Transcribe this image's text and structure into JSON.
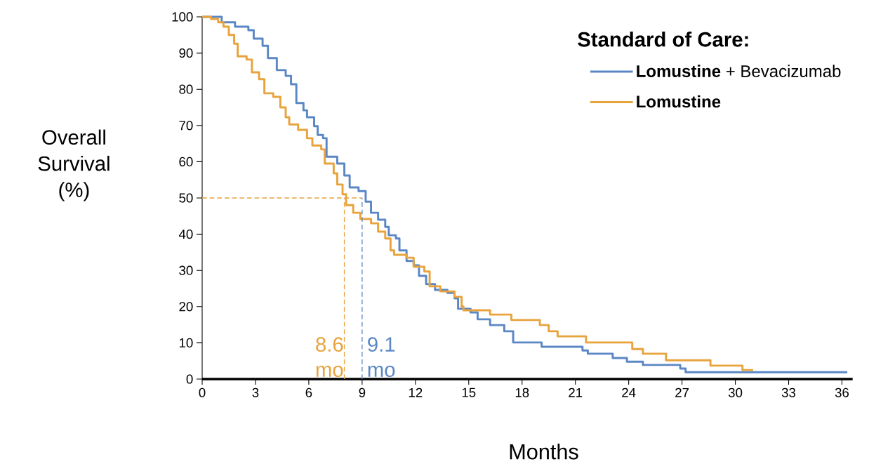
{
  "chart_data": {
    "type": "step",
    "xlabel": "Months",
    "ylabel": "Overall Survival (%)",
    "legend_title": "Standard of Care:",
    "legend": "top right",
    "xlim": [
      0,
      36.6
    ],
    "xticks": [
      0,
      3,
      6,
      9,
      12,
      15,
      18,
      21,
      24,
      27,
      30,
      33,
      36
    ],
    "ylim": [
      0,
      100
    ],
    "yticks": [
      0,
      10,
      20,
      30,
      40,
      50,
      60,
      70,
      80,
      90,
      100
    ],
    "grid": false,
    "line_style": "solid",
    "marker": "none",
    "series": [
      {
        "name": "**Lomustine** + Bevacizumab",
        "color": "#5b87c5",
        "x": [
          0,
          1.1,
          1.85,
          2.6,
          2.9,
          3.4,
          3.7,
          4.2,
          4.7,
          5.0,
          5.3,
          5.7,
          5.9,
          6.3,
          6.5,
          6.8,
          7.0,
          7.6,
          8.0,
          8.3,
          8.8,
          9.2,
          9.5,
          9.9,
          10.3,
          10.5,
          10.9,
          11.1,
          11.5,
          11.9,
          12.2,
          12.6,
          13.1,
          13.8,
          14.2,
          14.4,
          15.1,
          15.5,
          16.2,
          17.0,
          17.5,
          19.1,
          21.4,
          21.7,
          23.1,
          23.9,
          24.8,
          26.9,
          27.2,
          36.3
        ],
        "values": [
          100,
          98.5,
          97.3,
          96.3,
          94,
          92,
          88.6,
          85.3,
          83.7,
          81.4,
          76.2,
          74.2,
          72.3,
          69.8,
          67.4,
          66.5,
          61.4,
          59.5,
          56.2,
          52.9,
          51.9,
          49,
          45.9,
          44,
          42,
          39.7,
          38.8,
          35.5,
          32.6,
          31.4,
          28.5,
          26.2,
          24.6,
          23.8,
          22.3,
          19.4,
          18.4,
          16.5,
          14.9,
          13.2,
          10.1,
          8.9,
          7.9,
          7.0,
          5.8,
          4.8,
          3.9,
          2.9,
          1.9,
          1.9
        ]
      },
      {
        "name": "**Lomustine**",
        "color": "#e8a33d",
        "x": [
          0,
          0.5,
          0.9,
          1.2,
          1.5,
          1.8,
          2.0,
          2.5,
          2.8,
          3.2,
          3.5,
          4.0,
          4.4,
          4.7,
          4.9,
          5.4,
          5.9,
          6.2,
          6.7,
          6.9,
          7.4,
          7.6,
          7.9,
          8.1,
          8.5,
          8.9,
          9.5,
          9.9,
          10.3,
          10.6,
          10.8,
          11.5,
          11.9,
          12.5,
          12.8,
          13.4,
          14.2,
          14.6,
          14.7,
          16.2,
          17.4,
          19.0,
          19.5,
          20.0,
          21.6,
          24.2,
          24.8,
          26.1,
          28.6,
          30.4,
          31.0
        ],
        "values": [
          100,
          99.4,
          98.5,
          97.3,
          95,
          92.6,
          89.1,
          88.2,
          84.7,
          82.8,
          78.9,
          77.9,
          75,
          72.3,
          70.3,
          68.8,
          66.5,
          64.5,
          63.4,
          59.5,
          56.8,
          53.7,
          51,
          48,
          45.9,
          44.2,
          43,
          40.7,
          38.8,
          35.5,
          34.3,
          33.5,
          31,
          29.7,
          25.6,
          24.2,
          22.7,
          20,
          19,
          17.8,
          16.3,
          14.9,
          13.2,
          11.8,
          10.1,
          8.3,
          7.0,
          5.2,
          3.7,
          2.5,
          2.5
        ]
      }
    ],
    "ref_lines": [
      {
        "axis": "y",
        "value": 50,
        "color": "#e8a33d",
        "line_style": "dashed"
      },
      {
        "axis": "x",
        "value": 8.0,
        "label": "8.6 mo",
        "color": "#e8a33d",
        "line_style": "dashed"
      },
      {
        "axis": "x",
        "value": 9.0,
        "label": "9.1 mo",
        "color": "#5b87c5",
        "line_style": "dashed"
      }
    ]
  }
}
